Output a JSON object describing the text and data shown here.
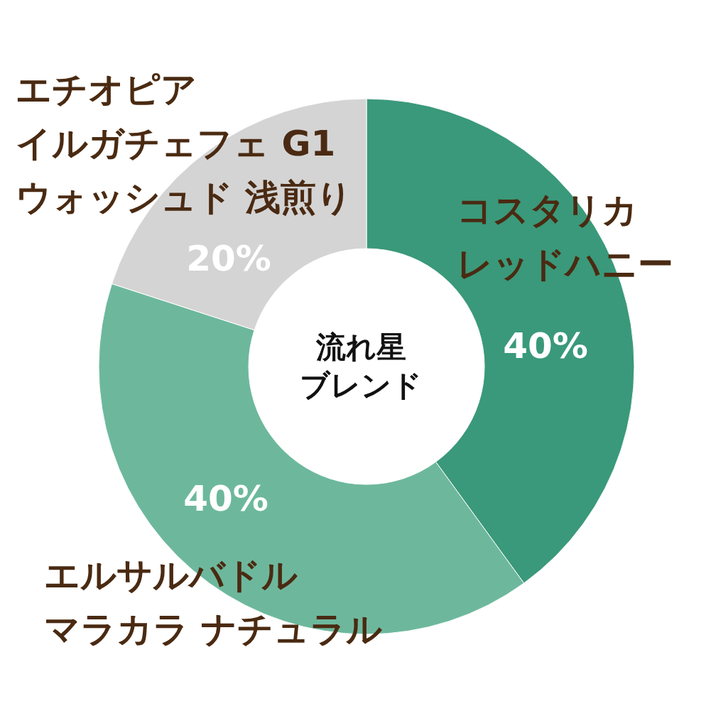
{
  "chart_data": {
    "type": "donut",
    "title": "流れ星ブレンド",
    "categories": [
      "コスタリカレッドハニー",
      "エルサルバドルマラカラ ナチュラル",
      "エチオピアイルガチェフェ G1ウォッシュド 浅煎り"
    ],
    "values": [
      40,
      40,
      20
    ],
    "colors": [
      "#3a997a",
      "#6db89d",
      "#d4d4d4"
    ],
    "value_labels": [
      "40%",
      "40%",
      "20%"
    ]
  }
}
